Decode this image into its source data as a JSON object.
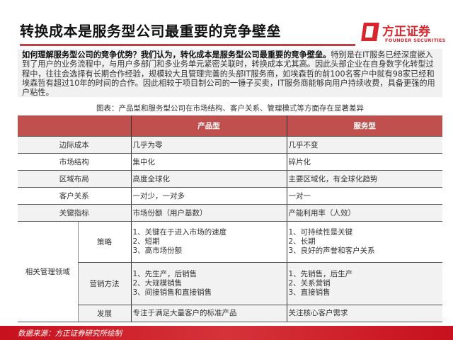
{
  "header": {
    "title": "转换成本是服务型公司最重要的竞争壁垒",
    "logo_cn": "方正证券",
    "logo_en": "FOUNDER SECURITIES"
  },
  "intro": {
    "bold": "如何理解服务型公司的竞争优势？我们认为，转化成本是服务型公司最重要的竞争壁垒。",
    "text": "特别是在IT服务已经深度嵌入到了用户的业务流程中，与用户多部门和多业务单元紧密关联时，转换成本尤其高。因此头部企业在自身数字化转型过程中，往往会选择有长期合作经验，规模较大且管理完善的头部IT服务商，如埃森哲的前100名客户中就有98家已经和埃森哲有超过10年的时间的合作。因此相较于项目制公司的一锤子买卖，IT服务商能够向用户持续收费，具备更强的用户粘性。"
  },
  "caption": "图表：产品型和服务型公司在市场结构、客户关系、管理模式等方面存在显著差异",
  "table": {
    "headers": [
      "",
      "产品型",
      "服务型"
    ],
    "rows": [
      {
        "label": "边际成本",
        "product": "几乎为零",
        "service": "几乎不变"
      },
      {
        "label": "市场结构",
        "product": "集中化",
        "service": "碎片化"
      },
      {
        "label": "区域布局",
        "product": "高度全球化",
        "service": "主要区域化，有全球化趋势"
      },
      {
        "label": "客户关系",
        "product": "一对少，一对多",
        "service": "一对一"
      },
      {
        "label": "关键指标",
        "product": "市场份额（用户基数）",
        "service": "产能利用率（人效）"
      }
    ],
    "group_label": "相关管理领域",
    "group_rows": [
      {
        "label": "策略",
        "product": [
          "1、关键在于进入市场的速度",
          "2、短期",
          "3、高市场份额"
        ],
        "service": [
          "1、可持续性是关键",
          "2、长期",
          "3、良好的声誉和客户关系"
        ]
      },
      {
        "label": "营销方法",
        "product": [
          "1、先生产，后销售",
          "2、大规模销售",
          "3、间接销售和直接销售"
        ],
        "service": [
          "1、先销售，后生产",
          "2、关系营销",
          "3、直接销售"
        ]
      },
      {
        "label": "发展",
        "product": [
          "专注于满足大量客户的标准产品"
        ],
        "service": [
          "关注核心客户需求"
        ]
      }
    ]
  },
  "footer": {
    "source": "数据来源：方正证券研究所绘制"
  },
  "colors": {
    "accent": "#c0504d",
    "brand": "#d7262e"
  }
}
